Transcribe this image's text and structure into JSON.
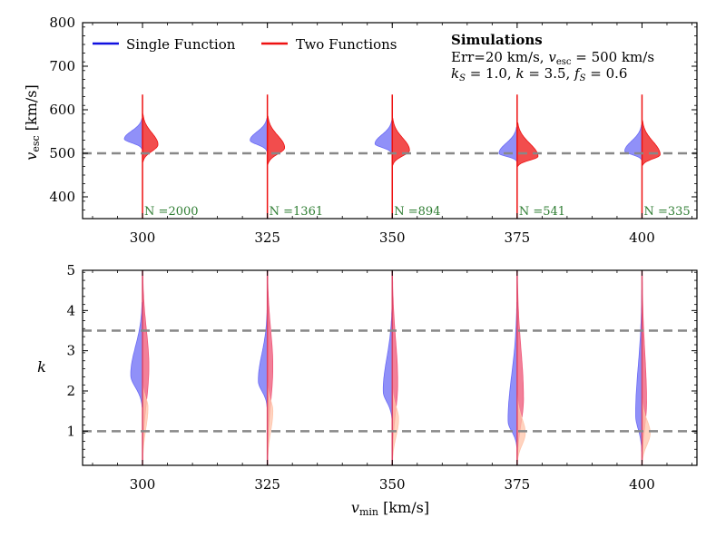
{
  "chart_data": [
    {
      "type": "violin",
      "panel": "top",
      "ylabel": "v_esc [km/s]",
      "xlabel": "",
      "x_ticks": [
        300,
        325,
        350,
        375,
        400
      ],
      "xlim": [
        288,
        411
      ],
      "ylim": [
        350,
        800
      ],
      "y_ticks": [
        400,
        500,
        600,
        700,
        800
      ],
      "grid": false,
      "legend_position": "top-left",
      "legend": [
        {
          "name": "Single Function",
          "color": "#1010e0"
        },
        {
          "name": "Two Functions",
          "color": "#ee1111"
        }
      ],
      "annotation": {
        "title": "Simulations",
        "line1": "Err=20 km/s, v_esc = 500 km/s",
        "line2": "k_S = 1.0, k = 3.5, f_S = 0.6"
      },
      "reference_line": 500,
      "series": [
        {
          "name": "Single Function",
          "side": "left",
          "color": "#6b6bf5",
          "groups": [
            {
              "x": 300,
              "mode": 533,
              "width": 20,
              "range": [
                510,
                580
              ]
            },
            {
              "x": 325,
              "mode": 530,
              "width": 19,
              "range": [
                505,
                580
              ]
            },
            {
              "x": 350,
              "mode": 522,
              "width": 19,
              "range": [
                500,
                575
              ]
            },
            {
              "x": 375,
              "mode": 500,
              "width": 20,
              "range": [
                482,
                560
              ]
            },
            {
              "x": 400,
              "mode": 505,
              "width": 19,
              "range": [
                485,
                565
              ]
            }
          ]
        },
        {
          "name": "Two Functions",
          "side": "right",
          "color": "#ee1111",
          "groups": [
            {
              "x": 300,
              "mode": 520,
              "width": 17,
              "range": [
                480,
                590
              ]
            },
            {
              "x": 325,
              "mode": 513,
              "width": 19,
              "range": [
                475,
                585
              ]
            },
            {
              "x": 350,
              "mode": 507,
              "width": 19,
              "range": [
                473,
                580
              ]
            },
            {
              "x": 375,
              "mode": 493,
              "width": 23,
              "range": [
                470,
                570
              ]
            },
            {
              "x": 400,
              "mode": 497,
              "width": 20,
              "range": [
                472,
                575
              ]
            }
          ]
        }
      ],
      "counts": [
        {
          "x": 300,
          "text": "N =2000"
        },
        {
          "x": 325,
          "text": "N =1361"
        },
        {
          "x": 350,
          "text": "N =894"
        },
        {
          "x": 375,
          "text": "N =541"
        },
        {
          "x": 400,
          "text": "N =335"
        }
      ]
    },
    {
      "type": "violin",
      "panel": "bottom",
      "ylabel": "k",
      "xlabel": "v_min [km/s]",
      "x_ticks": [
        300,
        325,
        350,
        375,
        400
      ],
      "xlim": [
        288,
        411
      ],
      "ylim": [
        0.15,
        5
      ],
      "y_ticks": [
        1,
        2,
        3,
        4,
        5
      ],
      "grid": false,
      "reference_lines": [
        3.5,
        1.0
      ],
      "series": [
        {
          "name": "Single Function",
          "side": "left",
          "color": "#6b6bf5",
          "groups": [
            {
              "x": 300,
              "mode": 2.4,
              "width": 13,
              "range": [
                1.6,
                4.2
              ]
            },
            {
              "x": 325,
              "mode": 2.25,
              "width": 10,
              "range": [
                1.6,
                4.0
              ]
            },
            {
              "x": 350,
              "mode": 2.0,
              "width": 10,
              "range": [
                1.3,
                4.1
              ]
            },
            {
              "x": 375,
              "mode": 1.25,
              "width": 10,
              "range": [
                0.6,
                4.2
              ]
            },
            {
              "x": 400,
              "mode": 1.4,
              "width": 7,
              "range": [
                0.5,
                4.5
              ]
            }
          ]
        },
        {
          "name": "Two Functions (k)",
          "side": "right",
          "color": "#ee5577",
          "groups": [
            {
              "x": 300,
              "mode": 2.6,
              "width": 7,
              "range": [
                0.3,
                5.0
              ]
            },
            {
              "x": 325,
              "mode": 2.6,
              "width": 6,
              "range": [
                0.3,
                5.0
              ]
            },
            {
              "x": 350,
              "mode": 2.2,
              "width": 6,
              "range": [
                0.3,
                5.0
              ]
            },
            {
              "x": 375,
              "mode": 1.8,
              "width": 7,
              "range": [
                0.2,
                5.0
              ]
            },
            {
              "x": 400,
              "mode": 1.7,
              "width": 5,
              "range": [
                0.2,
                5.0
              ]
            }
          ]
        },
        {
          "name": "Two Functions (k_S)",
          "side": "right",
          "color": "#ffc4aa",
          "groups": [
            {
              "x": 300,
              "mode": 1.6,
              "width": 6,
              "range": [
                0.2,
                2.2
              ]
            },
            {
              "x": 325,
              "mode": 1.5,
              "width": 6,
              "range": [
                0.2,
                2.2
              ]
            },
            {
              "x": 350,
              "mode": 1.3,
              "width": 7,
              "range": [
                0.2,
                2.1
              ]
            },
            {
              "x": 375,
              "mode": 0.95,
              "width": 9,
              "range": [
                0.2,
                1.9
              ]
            },
            {
              "x": 400,
              "mode": 0.95,
              "width": 9,
              "range": [
                0.2,
                1.8
              ]
            }
          ]
        }
      ]
    }
  ]
}
